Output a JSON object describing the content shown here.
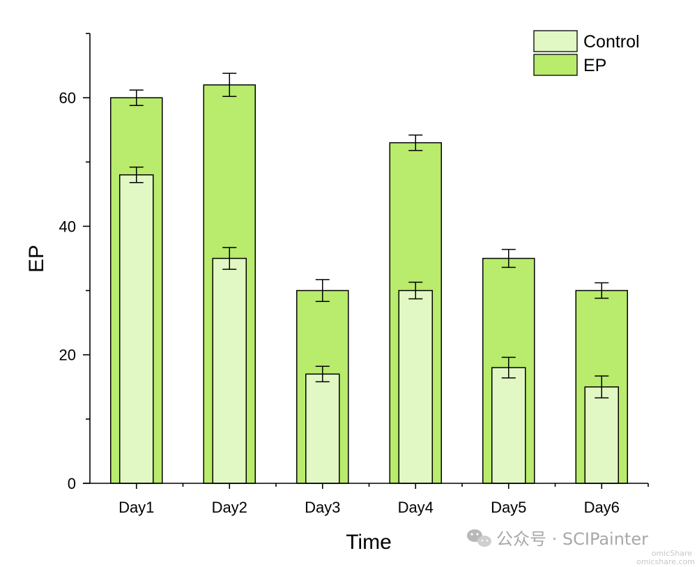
{
  "chart_data": {
    "type": "bar",
    "title": "",
    "xlabel": "Time",
    "ylabel": "EP",
    "categories": [
      "Day1",
      "Day2",
      "Day3",
      "Day4",
      "Day5",
      "Day6"
    ],
    "series": [
      {
        "name": "EP",
        "values": [
          60,
          62,
          30,
          53,
          35,
          30
        ],
        "errors": [
          1.2,
          1.8,
          1.7,
          1.2,
          1.4,
          1.2
        ],
        "color": "#b9eb6c"
      },
      {
        "name": "Control",
        "values": [
          48,
          35,
          17,
          30,
          18,
          15
        ],
        "errors": [
          1.2,
          1.7,
          1.2,
          1.3,
          1.6,
          1.7
        ],
        "color": "#e2f8c4"
      }
    ],
    "legend_order": [
      "Control",
      "EP"
    ],
    "ylim": [
      0,
      70
    ],
    "yticks": [
      0,
      20,
      40,
      60
    ],
    "yminor_step": 10,
    "grid": false,
    "legend_position": "top-right"
  },
  "watermark": {
    "text": "公众号 · SCIPainter",
    "icon": "wechat-icon",
    "site_line1": "omicShare",
    "site_line2": "omicshare.com"
  }
}
